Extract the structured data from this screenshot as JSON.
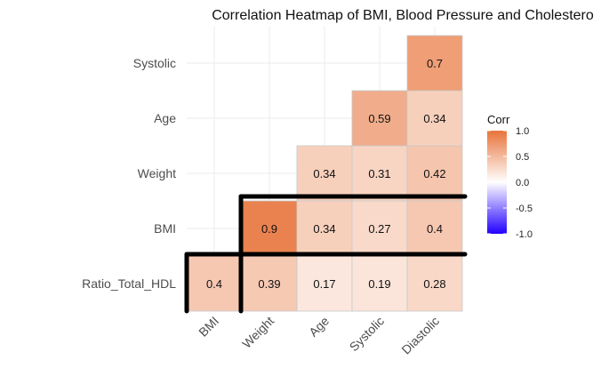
{
  "chart_data": {
    "type": "heatmap",
    "title": "Correlation Heatmap of BMI, Blood Pressure and Cholestero",
    "x_categories": [
      "BMI",
      "Weight",
      "Age",
      "Systolic",
      "Diastolic"
    ],
    "y_categories": [
      "Ratio_Total_HDL",
      "BMI",
      "Weight",
      "Age",
      "Systolic"
    ],
    "cells": [
      {
        "x": "BMI",
        "y": "Ratio_Total_HDL",
        "value": 0.4,
        "label": "0.4"
      },
      {
        "x": "Weight",
        "y": "Ratio_Total_HDL",
        "value": 0.39,
        "label": "0.39"
      },
      {
        "x": "Age",
        "y": "Ratio_Total_HDL",
        "value": 0.17,
        "label": "0.17"
      },
      {
        "x": "Systolic",
        "y": "Ratio_Total_HDL",
        "value": 0.19,
        "label": "0.19"
      },
      {
        "x": "Diastolic",
        "y": "Ratio_Total_HDL",
        "value": 0.28,
        "label": "0.28"
      },
      {
        "x": "Weight",
        "y": "BMI",
        "value": 0.9,
        "label": "0.9"
      },
      {
        "x": "Age",
        "y": "BMI",
        "value": 0.34,
        "label": "0.34"
      },
      {
        "x": "Systolic",
        "y": "BMI",
        "value": 0.27,
        "label": "0.27"
      },
      {
        "x": "Diastolic",
        "y": "BMI",
        "value": 0.4,
        "label": "0.4"
      },
      {
        "x": "Age",
        "y": "Weight",
        "value": 0.34,
        "label": "0.34"
      },
      {
        "x": "Systolic",
        "y": "Weight",
        "value": 0.31,
        "label": "0.31"
      },
      {
        "x": "Diastolic",
        "y": "Weight",
        "value": 0.42,
        "label": "0.42"
      },
      {
        "x": "Systolic",
        "y": "Age",
        "value": 0.59,
        "label": "0.59"
      },
      {
        "x": "Diastolic",
        "y": "Age",
        "value": 0.34,
        "label": "0.34"
      },
      {
        "x": "Diastolic",
        "y": "Systolic",
        "value": 0.7,
        "label": "0.7"
      }
    ],
    "legend": {
      "title": "Corr",
      "ticks": [
        1.0,
        0.5,
        0.0,
        -0.5,
        -1.0
      ],
      "tick_labels": [
        "1.0",
        "0.5",
        "0.0",
        "-0.5",
        "-1.0"
      ],
      "range": [
        -1,
        1
      ],
      "position": "right",
      "colors": {
        "low": "#2200ff",
        "mid": "#ffffff",
        "high": "#e8743b"
      }
    },
    "grid": true
  }
}
